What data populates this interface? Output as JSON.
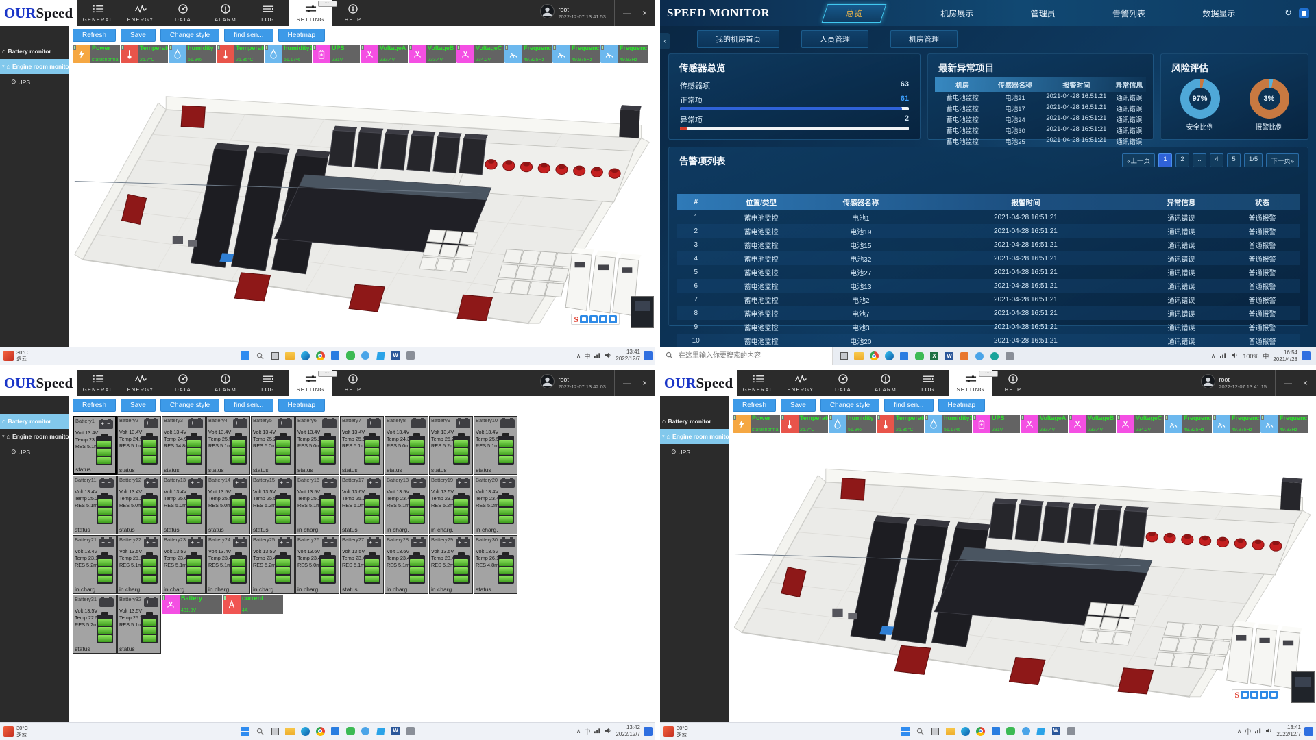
{
  "os": {
    "logo": {
      "part1": "OUR",
      "part2": "Speed"
    },
    "tabs": [
      {
        "id": "general",
        "label": "GENERAL"
      },
      {
        "id": "energy",
        "label": "ENERGY"
      },
      {
        "id": "data",
        "label": "DATA"
      },
      {
        "id": "alarm",
        "label": "ALARM"
      },
      {
        "id": "log",
        "label": "LOG"
      },
      {
        "id": "setting",
        "label": "SETTING"
      },
      {
        "id": "help",
        "label": "HELP"
      }
    ],
    "active_tab": "SETTING",
    "user": "root",
    "minimize": "—",
    "close": "×",
    "dots": "····",
    "sidebar": [
      {
        "label": "Battery monitor",
        "icon": "home"
      },
      {
        "label": "Engine room monitor",
        "icon": "home",
        "caret": "▾"
      },
      {
        "label": "UPS",
        "icon": "ups",
        "child": true
      }
    ],
    "buttons": [
      "Refresh",
      "Save",
      "Change style",
      "find sen...",
      "Heatmap"
    ],
    "weather": {
      "temp": "30°C",
      "desc": "多云"
    },
    "tray": {
      "caret": "∧",
      "lang": "中"
    },
    "taskbar_icons": [
      "windows",
      "search",
      "taskview",
      "folder",
      "edge",
      "chrome",
      "store",
      "wechat",
      "qq",
      "vscode",
      "word",
      "gray"
    ]
  },
  "sensors": [
    {
      "name": "Power",
      "value": "statusnormal",
      "color": "#f5a742",
      "icon": "power"
    },
    {
      "name": "Temperature",
      "value": "26.7°C",
      "color": "#e8544a",
      "icon": "thermo"
    },
    {
      "name": "humidity",
      "value": "51.9%",
      "color": "#6cb8ee",
      "icon": "drop"
    },
    {
      "name": "Temperature2",
      "value": "26.85°C",
      "color": "#e8544a",
      "icon": "thermo"
    },
    {
      "name": "humidity2",
      "value": "51.17%",
      "color": "#6cb8ee",
      "icon": "drop"
    },
    {
      "name": "UPS",
      "value": "231V",
      "color": "#f44fe3",
      "icon": "ups"
    },
    {
      "name": "VoltageA",
      "value": "233.4V",
      "color": "#f44fe3",
      "icon": "volt"
    },
    {
      "name": "VoltageB",
      "value": "233.4V",
      "color": "#f44fe3",
      "icon": "volt"
    },
    {
      "name": "VoltageC",
      "value": "234.2V",
      "color": "#f44fe3",
      "icon": "volt"
    },
    {
      "name": "Frequency",
      "value": "49.925Hz",
      "color": "#6cb8ee",
      "icon": "freq"
    },
    {
      "name": "Frequency2",
      "value": "49.975Hz",
      "color": "#6cb8ee",
      "icon": "freq"
    },
    {
      "name": "Frequency3",
      "value": "49.93Hz",
      "color": "#6cb8ee",
      "icon": "freq"
    }
  ],
  "extra_sensors": [
    {
      "name": "Battery",
      "value": "431.3V",
      "color": "#f44fe3",
      "icon": "volt"
    },
    {
      "name": "current",
      "value": "4A",
      "color": "#f05552",
      "icon": "amp"
    }
  ],
  "batteries": [
    {
      "id": "Battery1",
      "volt": "Volt 13.4V",
      "temp": "Temp 23.7°C",
      "res": "RES 5.1mΩ",
      "status": "status"
    },
    {
      "id": "Battery2",
      "volt": "Volt 13.4V",
      "temp": "Temp 24.9°C",
      "res": "RES 5.1mΩ",
      "status": "status"
    },
    {
      "id": "Battery3",
      "volt": "Volt 13.4V",
      "temp": "Temp 24.9°C",
      "res": "RES 14.8mΩ",
      "status": "status"
    },
    {
      "id": "Battery4",
      "volt": "Volt 13.4V",
      "temp": "Temp 25.5°C",
      "res": "RES 5.1mΩ",
      "status": "status"
    },
    {
      "id": "Battery5",
      "volt": "Volt 13.4V",
      "temp": "Temp 25.2°C",
      "res": "RES 5.0mΩ",
      "status": "status"
    },
    {
      "id": "Battery6",
      "volt": "Volt 13.4V",
      "temp": "Temp 25.2°C",
      "res": "RES 5.0mΩ",
      "status": "status"
    },
    {
      "id": "Battery7",
      "volt": "Volt 13.4V",
      "temp": "Temp 25.5°C",
      "res": "RES 5.1mΩ",
      "status": "status"
    },
    {
      "id": "Battery8",
      "volt": "Volt 13.4V",
      "temp": "Temp 24.3°C",
      "res": "RES 5.0mΩ",
      "status": "status"
    },
    {
      "id": "Battery9",
      "volt": "Volt 13.4V",
      "temp": "Temp 25.2°C",
      "res": "RES 5.2mΩ",
      "status": "status"
    },
    {
      "id": "Battery10",
      "volt": "Volt 13.4V",
      "temp": "Temp 25.5°C",
      "res": "RES 5.1mΩ",
      "status": "status"
    },
    {
      "id": "Battery11",
      "volt": "Volt 13.4V",
      "temp": "Temp 25.2°C",
      "res": "RES 5.1mΩ",
      "status": "status"
    },
    {
      "id": "Battery12",
      "volt": "Volt 13.4V",
      "temp": "Temp 25.2°C",
      "res": "RES 5.0mΩ",
      "status": "status"
    },
    {
      "id": "Battery13",
      "volt": "Volt 13.4V",
      "temp": "Temp 25.0°C",
      "res": "RES 5.0mΩ",
      "status": "status"
    },
    {
      "id": "Battery14",
      "volt": "Volt 13.5V",
      "temp": "Temp 25.5°C",
      "res": "RES 5.0mΩ",
      "status": "status"
    },
    {
      "id": "Battery15",
      "volt": "Volt 13.5V",
      "temp": "Temp 25.5°C",
      "res": "RES 5.2mΩ",
      "status": "status"
    },
    {
      "id": "Battery16",
      "volt": "Volt 13.5V",
      "temp": "Temp 25.2°C",
      "res": "RES 5.1mΩ",
      "status": "in charg."
    },
    {
      "id": "Battery17",
      "volt": "Volt 13.6V",
      "temp": "Temp 25.2°C",
      "res": "RES 5.0mΩ",
      "status": "status"
    },
    {
      "id": "Battery18",
      "volt": "Volt 13.5V",
      "temp": "Temp 23.4°C",
      "res": "RES 5.1mΩ",
      "status": "in charg."
    },
    {
      "id": "Battery19",
      "volt": "Volt 13.5V",
      "temp": "Temp 23.1°C",
      "res": "RES 5.2mΩ",
      "status": "in charg."
    },
    {
      "id": "Battery20",
      "volt": "Volt 13.4V",
      "temp": "Temp 23.4°C",
      "res": "RES 5.2mΩ",
      "status": "in charg."
    },
    {
      "id": "Battery21",
      "volt": "Volt 13.4V",
      "temp": "Temp 23.1°C",
      "res": "RES 5.2mΩ",
      "status": "in charg."
    },
    {
      "id": "Battery22",
      "volt": "Volt 13.5V",
      "temp": "Temp 23.1°C",
      "res": "RES 5.1mΩ",
      "status": "in charg."
    },
    {
      "id": "Battery23",
      "volt": "Volt 13.5V",
      "temp": "Temp 23.4°C",
      "res": "RES 5.1mΩ",
      "status": "in charg."
    },
    {
      "id": "Battery24",
      "volt": "Volt 13.4V",
      "temp": "Temp 23.4°C",
      "res": "RES 5.1mΩ",
      "status": "in charg."
    },
    {
      "id": "Battery25",
      "volt": "Volt 13.5V",
      "temp": "Temp 23.4°C",
      "res": "RES 5.2mΩ",
      "status": "in charg."
    },
    {
      "id": "Battery26",
      "volt": "Volt 13.6V",
      "temp": "Temp 23.4°C",
      "res": "RES 5.0mΩ",
      "status": "in charg."
    },
    {
      "id": "Battery27",
      "volt": "Volt 13.5V",
      "temp": "Temp 23.4°C",
      "res": "RES 5.1mΩ",
      "status": "status"
    },
    {
      "id": "Battery28",
      "volt": "Volt 13.6V",
      "temp": "Temp 23.4°C",
      "res": "RES 5.1mΩ",
      "status": "in charg."
    },
    {
      "id": "Battery29",
      "volt": "Volt 13.5V",
      "temp": "Temp 23.4°C",
      "res": "RES 5.2mΩ",
      "status": "in charg."
    },
    {
      "id": "Battery30",
      "volt": "Volt 13.5V",
      "temp": "Temp 26.1°C",
      "res": "RES 4.8mΩ",
      "status": "status"
    },
    {
      "id": "Battery31",
      "volt": "Volt 13.5V",
      "temp": "Temp 22.5°C",
      "res": "RES 5.2mΩ",
      "status": "status"
    },
    {
      "id": "Battery32",
      "volt": "Volt 13.5V",
      "temp": "Temp 25.2°C",
      "res": "RES 5.1mΩ",
      "status": "status"
    }
  ],
  "windows": {
    "room_top": {
      "timestamp": "2022-12-07 13:41:53",
      "time": "13:41",
      "date": "2022/12/7"
    },
    "battery": {
      "timestamp": "2022-12-07 13:42:03",
      "time": "13:42",
      "date": "2022/12/7"
    },
    "room_bottom": {
      "timestamp": "2022-12-07 13:41:15",
      "time": "13:41",
      "date": "2022/12/7"
    }
  },
  "dash": {
    "title": "SPEED MONITOR",
    "nav": [
      "总览",
      "机房展示",
      "管理员",
      "告警列表",
      "数据显示"
    ],
    "active_nav": "总览",
    "refresh_icon": "↻",
    "collapse": "‹",
    "subnav": [
      "我的机房首页",
      "人员管理",
      "机房管理"
    ],
    "overview": {
      "title": "传感器总览",
      "rows": [
        {
          "label": "传感器项",
          "value": "63"
        },
        {
          "label": "正常项",
          "value": "61"
        },
        {
          "label": "异常项",
          "value": "2"
        }
      ],
      "normal_pct": 97,
      "abnormal_pct": 3,
      "normal_color": "#2f62d8",
      "abnormal_color": "#d43c2a"
    },
    "abnormal": {
      "title": "最新异常项目",
      "headers": [
        "机房",
        "传感器名称",
        "报警时间",
        "异常信息"
      ],
      "rows": [
        [
          "蓄电池监控",
          "电池21",
          "2021-04-28 16:51:21",
          "通讯错误"
        ],
        [
          "蓄电池监控",
          "电池17",
          "2021-04-28 16:51:21",
          "通讯错误"
        ],
        [
          "蓄电池监控",
          "电池24",
          "2021-04-28 16:51:21",
          "通讯错误"
        ],
        [
          "蓄电池监控",
          "电池30",
          "2021-04-28 16:51:21",
          "通讯错误"
        ],
        [
          "蓄电池监控",
          "电池25",
          "2021-04-28 16:51:21",
          "通讯错误"
        ]
      ]
    },
    "risk": {
      "title": "风险评估",
      "donuts": [
        {
          "pct": "97%",
          "label": "安全比例",
          "main": "#4fa8d8",
          "slice": "#c87941",
          "slice_pct": 3
        },
        {
          "pct": "3%",
          "label": "报警比例",
          "main": "#c87941",
          "slice": "#57b0dc",
          "slice_pct": 3
        }
      ]
    },
    "alarms": {
      "title": "告警项列表",
      "pagination": [
        "«上一页",
        "1",
        "2",
        "..",
        "4",
        "5",
        "1/5",
        "下一页»"
      ],
      "active_page": "1",
      "headers": [
        "#",
        "位置/类型",
        "传感器名称",
        "报警时间",
        "异常信息",
        "状态"
      ],
      "rows": [
        [
          "1",
          "蓄电池监控",
          "电池1",
          "2021-04-28 16:51:21",
          "通讯错误",
          "普通报警"
        ],
        [
          "2",
          "蓄电池监控",
          "电池19",
          "2021-04-28 16:51:21",
          "通讯错误",
          "普通报警"
        ],
        [
          "3",
          "蓄电池监控",
          "电池15",
          "2021-04-28 16:51:21",
          "通讯错误",
          "普通报警"
        ],
        [
          "4",
          "蓄电池监控",
          "电池32",
          "2021-04-28 16:51:21",
          "通讯错误",
          "普通报警"
        ],
        [
          "5",
          "蓄电池监控",
          "电池27",
          "2021-04-28 16:51:21",
          "通讯错误",
          "普通报警"
        ],
        [
          "6",
          "蓄电池监控",
          "电池13",
          "2021-04-28 16:51:21",
          "通讯错误",
          "普通报警"
        ],
        [
          "7",
          "蓄电池监控",
          "电池2",
          "2021-04-28 16:51:21",
          "通讯错误",
          "普通报警"
        ],
        [
          "8",
          "蓄电池监控",
          "电池7",
          "2021-04-28 16:51:21",
          "通讯错误",
          "普通报警"
        ],
        [
          "9",
          "蓄电池监控",
          "电池3",
          "2021-04-28 16:51:21",
          "通讯错误",
          "普通报警"
        ],
        [
          "10",
          "蓄电池监控",
          "电池20",
          "2021-04-28 16:51:21",
          "通讯错误",
          "普通报警"
        ]
      ]
    },
    "search_placeholder": "在这里输入你要搜索的内容",
    "tray": {
      "caret": "∧",
      "pct": "100%",
      "lang": "中",
      "time": "16:54",
      "date": "2021/4/28"
    },
    "taskbar_icons": [
      "taskview",
      "folder",
      "chrome",
      "edge",
      "store",
      "wechat",
      "excel",
      "word",
      "orange",
      "qq",
      "teal",
      "gray"
    ]
  }
}
